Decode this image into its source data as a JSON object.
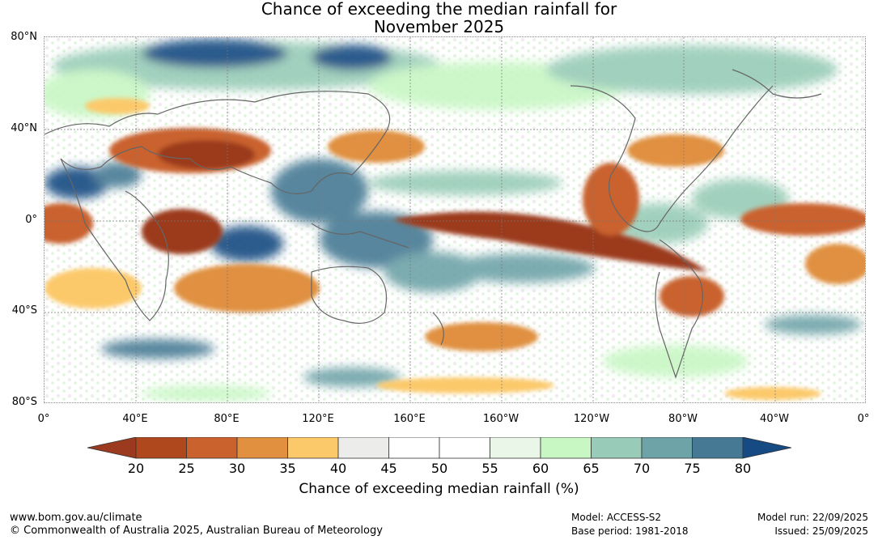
{
  "title": {
    "line1": "Chance of exceeding the median rainfall for",
    "line2": "November 2025"
  },
  "axes": {
    "lat_labels": [
      "80°N",
      "40°N",
      "0°",
      "40°S",
      "80°S"
    ],
    "lon_labels": [
      "0°",
      "40°E",
      "80°E",
      "120°E",
      "160°E",
      "160°W",
      "120°W",
      "80°W",
      "40°W",
      "0°"
    ]
  },
  "colorbar": {
    "ticks": [
      "20",
      "25",
      "30",
      "35",
      "40",
      "45",
      "50",
      "55",
      "60",
      "65",
      "70",
      "75",
      "80"
    ],
    "colors": [
      "#b0481e",
      "#c9622d",
      "#e0903f",
      "#fcc96a",
      "#ececea",
      "#ffffff",
      "#ffffff",
      "#eaf6e8",
      "#c8f7c4",
      "#99ccb8",
      "#6ea3a8",
      "#467a94"
    ],
    "low_extend_color": "#9b3a1e",
    "high_extend_color": "#154b82",
    "title": "Chance of exceeding median rainfall (%)"
  },
  "footer": {
    "website": "www.bom.gov.au/climate",
    "copyright": "© Commonwealth of Australia 2025, Australian Bureau of Meteorology",
    "model": "Model: ACCESS-S2",
    "base_period": "Base period: 1981-2018",
    "model_run": "Model run: 22/09/2025",
    "issued": "Issued: 25/09/2025"
  }
}
